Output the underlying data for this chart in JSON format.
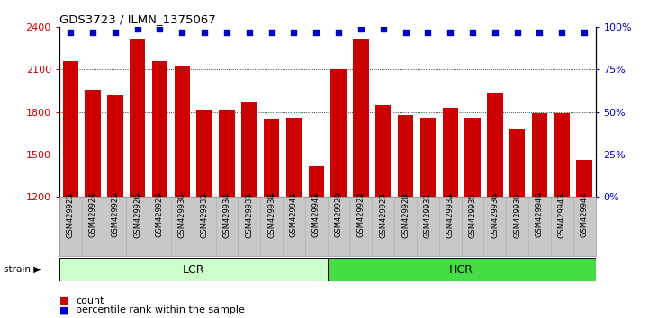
{
  "title": "GDS3723 / ILMN_1375067",
  "samples": [
    "GSM429923",
    "GSM429924",
    "GSM429925",
    "GSM429926",
    "GSM429929",
    "GSM429930",
    "GSM429933",
    "GSM429934",
    "GSM429937",
    "GSM429938",
    "GSM429941",
    "GSM429942",
    "GSM429920",
    "GSM429922",
    "GSM429927",
    "GSM429928",
    "GSM429931",
    "GSM429932",
    "GSM429935",
    "GSM429936",
    "GSM429939",
    "GSM429940",
    "GSM429943",
    "GSM429944"
  ],
  "counts": [
    2160,
    1960,
    1920,
    2320,
    2160,
    2120,
    1810,
    1810,
    1870,
    1750,
    1760,
    1420,
    2100,
    2320,
    1850,
    1780,
    1760,
    1830,
    1760,
    1930,
    1680,
    1790,
    1790,
    1460
  ],
  "percentile_ranks": [
    97,
    97,
    97,
    99,
    99,
    97,
    97,
    97,
    97,
    97,
    97,
    97,
    97,
    99,
    99,
    97,
    97,
    97,
    97,
    97,
    97,
    97,
    97,
    97
  ],
  "lcr_count": 12,
  "hcr_count": 12,
  "bar_color": "#cc0000",
  "dot_color": "#0000cc",
  "ylim_left": [
    1200,
    2400
  ],
  "ylim_right": [
    0,
    100
  ],
  "yticks_left": [
    1200,
    1500,
    1800,
    2100,
    2400
  ],
  "yticks_right": [
    0,
    25,
    50,
    75,
    100
  ],
  "ylabel_left_color": "#cc0000",
  "ylabel_right_color": "#0000cc",
  "grid_color": "#000000",
  "lcr_color": "#ccffcc",
  "hcr_color": "#44dd44",
  "strain_label": "strain",
  "lcr_label": "LCR",
  "hcr_label": "HCR",
  "legend_count_label": "count",
  "legend_pct_label": "percentile rank within the sample",
  "bg_color": "#ffffff",
  "tick_area_color": "#c8c8c8"
}
